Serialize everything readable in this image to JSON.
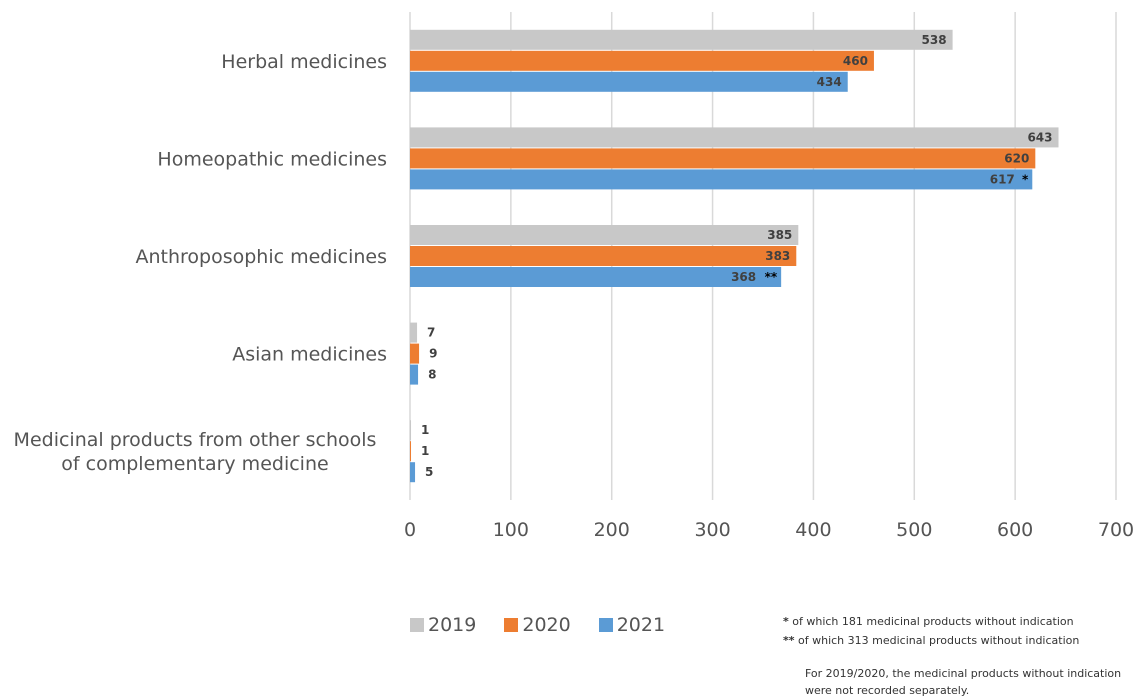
{
  "chart_data": {
    "type": "bar",
    "orientation": "horizontal",
    "categories": [
      [
        "Herbal medicines"
      ],
      [
        "Homeopathic medicines"
      ],
      [
        "Anthroposophic medicines"
      ],
      [
        "Asian medicines"
      ],
      [
        "Medicinal products from other schools",
        "of complementary medicine"
      ]
    ],
    "series": [
      {
        "name": "2019",
        "color": "#c8c8c8",
        "values": [
          538,
          643,
          385,
          7,
          1
        ],
        "marks": [
          "",
          "",
          "",
          "",
          ""
        ]
      },
      {
        "name": "2020",
        "color": "#ed7d31",
        "values": [
          460,
          620,
          383,
          9,
          1
        ],
        "marks": [
          "",
          "",
          "",
          "",
          ""
        ]
      },
      {
        "name": "2021",
        "color": "#5b9bd5",
        "values": [
          434,
          617,
          368,
          8,
          5
        ],
        "marks": [
          "",
          "*",
          "**",
          "",
          ""
        ]
      }
    ],
    "xlim": [
      0,
      700
    ],
    "xticks": [
      0,
      100,
      200,
      300,
      400,
      500,
      600,
      700
    ],
    "grid": true,
    "legend_position": "bottom"
  },
  "notes": {
    "single_mark": "*",
    "single_text": "of which 181 medicinal products without indication",
    "double_mark": "**",
    "double_text": "of which 313 medicinal products without indication",
    "extra": "For 2019/2020, the medicinal products without indication were not recorded separately."
  }
}
